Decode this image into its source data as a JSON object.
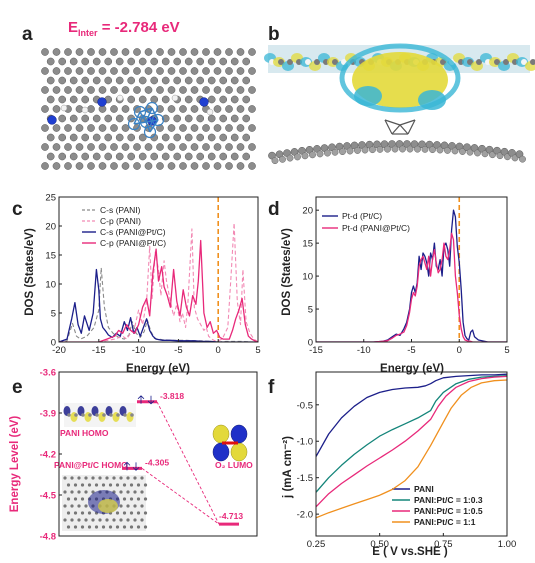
{
  "panel_letters": [
    "a",
    "b",
    "c",
    "d",
    "e",
    "f"
  ],
  "panel_a": {
    "energy_label_main": "E",
    "energy_label_sub": "Inter",
    "energy_value": " = -2.784 eV"
  },
  "colors": {
    "pink": "#e8297a",
    "navy": "#1c1f8a",
    "orange": "#f0901e",
    "teal": "#14857a",
    "gray": "#8a8a8a",
    "lightpink": "#f28ab4",
    "carbon": "#8c8c8c",
    "nitrogen": "#1f3fd1",
    "isosurface_cyan": "#39b6d6",
    "isosurface_yellow": "#e3d93a"
  },
  "icons": [
    "graphene-lattice",
    "nitrogen-atom",
    "pt-cluster",
    "charge-density-isosurface",
    "homo-orbital",
    "lumo-orbital"
  ],
  "chart_data": [
    {
      "panel": "c",
      "type": "line",
      "xlabel": "Energy (eV)",
      "ylabel": "DOS (States/eV)",
      "xlim": [
        -20,
        5
      ],
      "ylim": [
        0,
        25
      ],
      "xticks": [
        -20,
        -15,
        -10,
        -5,
        0,
        5
      ],
      "yticks": [
        0,
        5,
        10,
        15,
        20,
        25
      ],
      "fermi_level_x": 0,
      "legend_position": "top-left",
      "series": [
        {
          "name": "C-s (PANI)",
          "style": "dashed",
          "color": "#8a8a8a",
          "x": [
            -20,
            -19,
            -18.3,
            -17.8,
            -17.3,
            -16.5,
            -15.6,
            -15.0,
            -14.7,
            -14.3,
            -13.8,
            -13.2,
            -12.5,
            -11.8,
            -11.2,
            -10.8,
            -10.3,
            -9.8,
            -9.3,
            -8.9,
            -8.5,
            -8.0,
            -7.0,
            -6.0,
            -5.0,
            -4.0,
            -3.0,
            -2.0,
            -1.0,
            0,
            1,
            2,
            3,
            4,
            5
          ],
          "y": [
            0,
            0.2,
            3.2,
            1.0,
            0.5,
            1.0,
            2.5,
            5.5,
            12.8,
            6.0,
            2.5,
            1.5,
            0.8,
            0.5,
            1.2,
            3.5,
            1.5,
            0.8,
            1.8,
            3.8,
            2.0,
            0.6,
            0.4,
            0.3,
            0.3,
            0.3,
            0.2,
            0.2,
            0.1,
            0,
            0.1,
            0.1,
            0.1,
            0,
            0
          ]
        },
        {
          "name": "C-p (PANI)",
          "style": "dashed",
          "color": "#f28ab4",
          "x": [
            -20,
            -15,
            -13,
            -12,
            -11.5,
            -11,
            -10.5,
            -10,
            -9.5,
            -9,
            -8.6,
            -8.3,
            -7.9,
            -7.5,
            -7.2,
            -6.8,
            -6.5,
            -6.0,
            -5.6,
            -5.2,
            -4.8,
            -4.5,
            -4.1,
            -3.8,
            -3.3,
            -3.0,
            -2.6,
            -2.2,
            -1.8,
            -1.5,
            -1.2,
            -0.8,
            -0.4,
            0,
            0.5,
            1.2,
            1.6,
            2.0,
            2.4,
            2.8,
            3.1,
            3.5,
            4.0,
            4.5,
            5
          ],
          "y": [
            0,
            0,
            0.5,
            1.0,
            0.5,
            1.5,
            2.5,
            5.5,
            3.0,
            7.0,
            16.5,
            7.5,
            15.5,
            12.5,
            8.0,
            14.0,
            10.5,
            7.0,
            4.5,
            6.5,
            3.5,
            5.0,
            2.5,
            7.0,
            19.5,
            6.0,
            4.0,
            3.0,
            2.0,
            2.5,
            1.0,
            0.5,
            0.2,
            0.2,
            0.5,
            2.5,
            11.0,
            20.5,
            7.0,
            3.0,
            12.5,
            3.5,
            1.5,
            0.5,
            0
          ]
        },
        {
          "name": "C-s (PANI@Pt/C)",
          "style": "solid",
          "color": "#1c1f8a",
          "x": [
            -20,
            -19,
            -18.4,
            -18.0,
            -17.6,
            -17.2,
            -16.8,
            -16.2,
            -15.7,
            -15.3,
            -15.0,
            -14.8,
            -14.5,
            -14.2,
            -13.8,
            -13.3,
            -12.8,
            -12.3,
            -11.8,
            -11.4,
            -11.0,
            -10.6,
            -10.2,
            -9.8,
            -9.4,
            -9.0,
            -8.6,
            -8.2,
            -7.8,
            -7.0,
            -6.0,
            -5.0,
            -4.0,
            -3.0,
            -2.0,
            -1.0,
            0,
            1,
            2,
            3,
            4,
            5
          ],
          "y": [
            0,
            0.5,
            4.0,
            6.8,
            3.0,
            1.5,
            4.5,
            2.0,
            5.0,
            12.5,
            9.0,
            4.0,
            2.5,
            2.0,
            1.2,
            0.8,
            1.5,
            1.0,
            3.5,
            2.0,
            4.2,
            1.5,
            2.5,
            1.0,
            2.5,
            4.0,
            2.0,
            1.0,
            0.5,
            0.3,
            0.3,
            0.2,
            0.2,
            0.2,
            0.1,
            0.1,
            0,
            0,
            0,
            0,
            0,
            0
          ]
        },
        {
          "name": "C-p (PANI@Pt/C)",
          "style": "solid",
          "color": "#e8297a",
          "x": [
            -20,
            -15,
            -14,
            -13,
            -12.5,
            -12,
            -11.5,
            -11,
            -10.5,
            -10,
            -9.5,
            -9.0,
            -8.6,
            -8.2,
            -7.8,
            -7.5,
            -7.1,
            -6.8,
            -6.4,
            -6.0,
            -5.6,
            -5.2,
            -4.8,
            -4.4,
            -4.0,
            -3.6,
            -3.2,
            -2.8,
            -2.5,
            -2.2,
            -1.8,
            -1.4,
            -1.0,
            -0.6,
            -0.2,
            0.2,
            0.6,
            1.0,
            1.4,
            1.8,
            2.2,
            2.6,
            3.0,
            3.4,
            3.8,
            4.2,
            4.6,
            5
          ],
          "y": [
            0,
            0,
            0.5,
            1.0,
            2.0,
            1.5,
            3.0,
            2.0,
            1.5,
            3.0,
            6.0,
            7.5,
            4.5,
            12.0,
            16.0,
            10.5,
            13.0,
            9.5,
            8.0,
            6.0,
            12.5,
            7.0,
            4.5,
            9.0,
            6.0,
            4.5,
            8.0,
            6.5,
            10.5,
            17.5,
            5.0,
            2.5,
            3.5,
            1.5,
            2.0,
            0.8,
            0.5,
            0.5,
            0.5,
            2.0,
            4.0,
            5.5,
            7.5,
            3.0,
            1.0,
            0.5,
            0.2,
            0
          ]
        }
      ]
    },
    {
      "panel": "d",
      "type": "line",
      "xlabel": "Energy (eV)",
      "ylabel": "DOS (States/eV)",
      "xlim": [
        -15,
        5
      ],
      "ylim": [
        0,
        22
      ],
      "xticks": [
        -15,
        -10,
        -5,
        0,
        5
      ],
      "yticks": [
        0,
        5,
        10,
        15,
        20
      ],
      "fermi_level_x": 0,
      "legend_position": "top-left",
      "series": [
        {
          "name": "Pt-d (Pt/C)",
          "style": "solid",
          "color": "#1c1f8a",
          "x": [
            -15,
            -10,
            -9,
            -8,
            -7.5,
            -7.0,
            -6.6,
            -6.2,
            -5.8,
            -5.5,
            -5.2,
            -5.0,
            -4.8,
            -4.6,
            -4.4,
            -4.2,
            -4.0,
            -3.8,
            -3.6,
            -3.4,
            -3.2,
            -3.0,
            -2.8,
            -2.6,
            -2.4,
            -2.2,
            -2.0,
            -1.8,
            -1.6,
            -1.4,
            -1.2,
            -1.0,
            -0.8,
            -0.6,
            -0.4,
            -0.2,
            0,
            0.2,
            0.4,
            0.6,
            0.8,
            1.0,
            1.2,
            1.4,
            1.6,
            2.0,
            3.0,
            5
          ],
          "y": [
            0,
            0,
            0,
            0.1,
            0.3,
            0.8,
            1.2,
            1.0,
            2.0,
            3.0,
            5.0,
            7.5,
            8.5,
            7.5,
            9.0,
            13.0,
            11.0,
            13.5,
            13.0,
            12.0,
            10.0,
            13.5,
            12.5,
            15.0,
            11.5,
            11.0,
            12.5,
            10.0,
            14.5,
            15.0,
            14.0,
            11.5,
            17.0,
            20.0,
            19.0,
            14.5,
            12.0,
            8.0,
            3.0,
            1.0,
            0.5,
            0.3,
            1.5,
            1.8,
            0.8,
            0.3,
            0,
            0
          ]
        },
        {
          "name": "Pt-d (PANI@Pt/C)",
          "style": "solid",
          "color": "#e8297a",
          "x": [
            -15,
            -10,
            -9,
            -8,
            -7.5,
            -7.0,
            -6.6,
            -6.2,
            -5.8,
            -5.5,
            -5.2,
            -5.0,
            -4.8,
            -4.6,
            -4.4,
            -4.2,
            -4.0,
            -3.8,
            -3.6,
            -3.4,
            -3.2,
            -3.0,
            -2.8,
            -2.6,
            -2.4,
            -2.2,
            -2.0,
            -1.8,
            -1.6,
            -1.4,
            -1.2,
            -1.0,
            -0.8,
            -0.6,
            -0.4,
            -0.2,
            0,
            0.2,
            0.4,
            0.6,
            0.8,
            1.0,
            1.2,
            1.4,
            1.6,
            2.0,
            3.0,
            5
          ],
          "y": [
            0,
            0,
            0,
            0.1,
            0.2,
            0.6,
            1.0,
            1.2,
            1.5,
            2.5,
            4.5,
            6.5,
            7.5,
            7.0,
            8.5,
            11.5,
            12.5,
            13.0,
            12.0,
            11.0,
            13.0,
            10.0,
            12.5,
            14.0,
            12.0,
            10.5,
            11.0,
            12.5,
            15.0,
            13.0,
            12.5,
            14.0,
            16.5,
            15.5,
            10.0,
            7.5,
            4.0,
            2.0,
            0.8,
            0.3,
            0.2,
            0.1,
            0.1,
            0,
            0,
            0,
            0,
            0
          ]
        }
      ]
    },
    {
      "panel": "e",
      "type": "energy-level diagram",
      "ylabel": "Energy Level (eV)",
      "ylim": [
        -4.8,
        -3.6
      ],
      "yticks": [
        -4.8,
        -4.5,
        -4.2,
        -3.9,
        -3.6
      ],
      "levels": [
        {
          "name": "PANI HOMO",
          "value": -3.818,
          "label": "-3.818",
          "color": "#e8297a"
        },
        {
          "name": "PANI@Pt/C HOMO",
          "value": -4.305,
          "label": "-4.305",
          "color": "#e8297a"
        },
        {
          "name": "O₂ LUMO",
          "value": -4.713,
          "label": "-4.713",
          "color": "#e8297a"
        }
      ]
    },
    {
      "panel": "f",
      "type": "line",
      "xlabel": "E ( V vs.SHE )",
      "ylabel": "j (mA cm⁻²)",
      "xlim": [
        0.25,
        1.0
      ],
      "ylim": [
        -2.3,
        -0.05
      ],
      "xticks": [
        0.25,
        0.5,
        0.75,
        1.0
      ],
      "xticklabels": [
        "0.25",
        "0.50",
        "0.75",
        "1.00"
      ],
      "yticks": [
        -2.0,
        -1.5,
        -1.0,
        -0.5
      ],
      "yticklabels": [
        "-2.0",
        "-1.5",
        "-1.0",
        "-0.5"
      ],
      "legend_position": "bottom-right",
      "series": [
        {
          "name": "PANI",
          "color": "#1c1f8a",
          "x": [
            0.25,
            0.3,
            0.35,
            0.4,
            0.45,
            0.5,
            0.55,
            0.6,
            0.65,
            0.68,
            0.7,
            0.72,
            0.75,
            0.8,
            0.85,
            0.9,
            0.95,
            1.0
          ],
          "y": [
            -1.21,
            -0.9,
            -0.68,
            -0.52,
            -0.4,
            -0.33,
            -0.29,
            -0.27,
            -0.26,
            -0.24,
            -0.21,
            -0.17,
            -0.13,
            -0.11,
            -0.1,
            -0.09,
            -0.09,
            -0.08
          ]
        },
        {
          "name": "PANI:Pt/C = 1:0.3",
          "color": "#14857a",
          "x": [
            0.25,
            0.3,
            0.35,
            0.4,
            0.45,
            0.5,
            0.55,
            0.6,
            0.65,
            0.7,
            0.72,
            0.75,
            0.8,
            0.85,
            0.9,
            0.95,
            1.0
          ],
          "y": [
            -1.7,
            -1.5,
            -1.33,
            -1.18,
            -1.05,
            -0.93,
            -0.84,
            -0.76,
            -0.68,
            -0.58,
            -0.45,
            -0.33,
            -0.21,
            -0.15,
            -0.12,
            -0.11,
            -0.1
          ]
        },
        {
          "name": "PANI:Pt/C = 1:0.5",
          "color": "#e8297a",
          "x": [
            0.25,
            0.3,
            0.35,
            0.4,
            0.45,
            0.5,
            0.55,
            0.6,
            0.65,
            0.7,
            0.73,
            0.76,
            0.8,
            0.85,
            0.9,
            0.95,
            1.0
          ],
          "y": [
            -1.9,
            -1.72,
            -1.58,
            -1.46,
            -1.34,
            -1.23,
            -1.12,
            -1.0,
            -0.86,
            -0.7,
            -0.52,
            -0.38,
            -0.26,
            -0.18,
            -0.14,
            -0.12,
            -0.11
          ]
        },
        {
          "name": "PANI:Pt/C = 1:1",
          "color": "#f0901e",
          "x": [
            0.25,
            0.3,
            0.35,
            0.4,
            0.45,
            0.5,
            0.55,
            0.6,
            0.65,
            0.7,
            0.75,
            0.78,
            0.82,
            0.86,
            0.9,
            0.95,
            1.0
          ],
          "y": [
            -2.05,
            -1.98,
            -1.92,
            -1.86,
            -1.8,
            -1.74,
            -1.66,
            -1.54,
            -1.35,
            -1.06,
            -0.74,
            -0.55,
            -0.37,
            -0.26,
            -0.2,
            -0.17,
            -0.16
          ]
        }
      ]
    }
  ]
}
